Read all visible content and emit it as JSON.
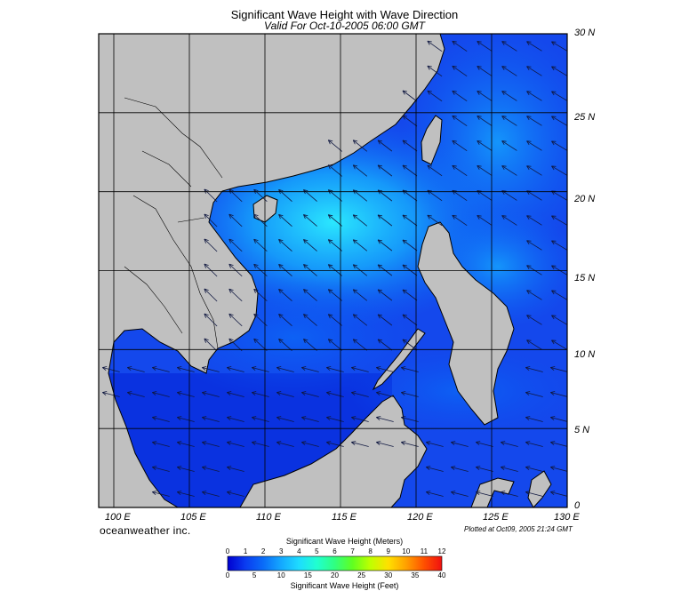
{
  "header": {
    "title": "Significant Wave Height with Wave Direction",
    "subtitle": "Valid For Oct-10-2005 06:00 GMT"
  },
  "map": {
    "lon_range": [
      99,
      130
    ],
    "lat_range": [
      0,
      30
    ],
    "lat_labels": [
      "30 N",
      "25 N",
      "20 N",
      "15 N",
      "10 N",
      "5 N",
      "0"
    ],
    "lon_labels": [
      "100 E",
      "105 E",
      "110 E",
      "115 E",
      "120 E",
      "125 E",
      "130 E"
    ],
    "land_color": "#c0c0c0",
    "sea_base_color": "#1e5cf0"
  },
  "footer": {
    "brand": "oceanweather inc.",
    "plotted": "Plotted at Oct09, 2005 21:24 GMT"
  },
  "colorbar": {
    "top_title": "Significant Wave Height (Meters)",
    "bottom_title": "Significant Wave Height (Feet)",
    "meters": [
      "0",
      "1",
      "2",
      "3",
      "4",
      "5",
      "6",
      "7",
      "8",
      "9",
      "10",
      "11",
      "12"
    ],
    "feet": [
      "0",
      "5",
      "10",
      "15",
      "20",
      "25",
      "30",
      "35",
      "40"
    ],
    "colors": [
      "#0000d0",
      "#0a3cf0",
      "#0a6cf8",
      "#14a8ff",
      "#1edcff",
      "#20ffd0",
      "#30ff80",
      "#60ff20",
      "#c0ff00",
      "#ffe000",
      "#ffa000",
      "#ff5000",
      "#f01010"
    ]
  }
}
